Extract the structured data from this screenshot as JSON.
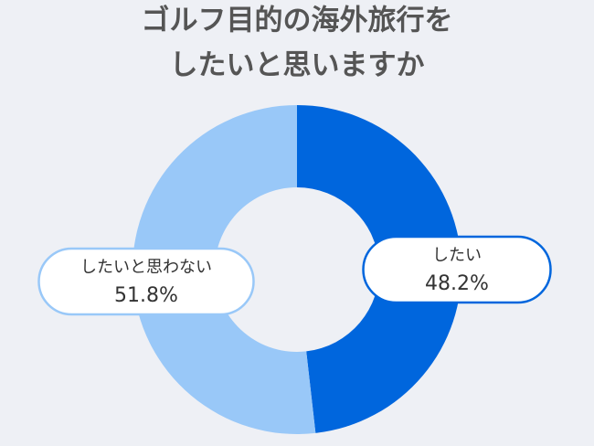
{
  "chart_data": {
    "type": "donut",
    "title": [
      "ゴルフ目的の海外旅行を",
      "したいと思いますか"
    ],
    "categories": [
      "したい",
      "したいと思わない"
    ],
    "values": [
      48.2,
      51.8
    ],
    "value_labels": [
      "48.2%",
      "51.8%"
    ],
    "colors": [
      "#0066dd",
      "#99c8f8"
    ]
  }
}
